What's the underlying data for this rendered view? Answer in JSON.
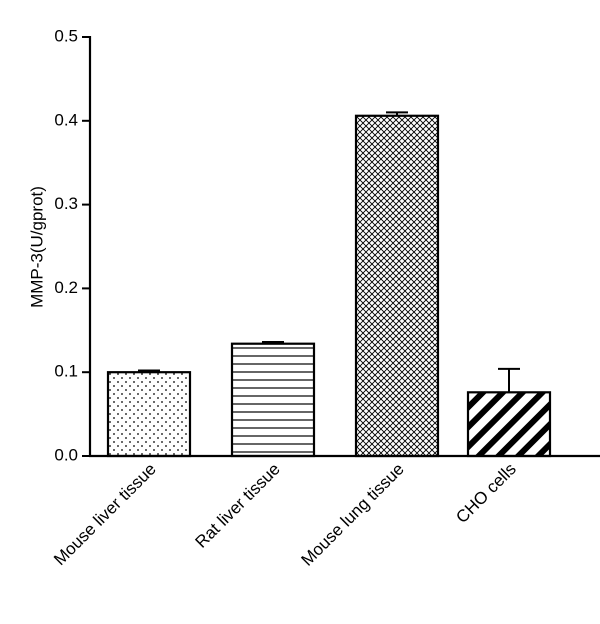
{
  "chart_data": {
    "type": "bar",
    "title": "",
    "xlabel": "",
    "ylabel": "MMP-3(U/gprot)",
    "ylim": [
      0,
      0.5
    ],
    "yticks": [
      "0.0",
      "0.1",
      "0.2",
      "0.3",
      "0.4",
      "0.5"
    ],
    "categories": [
      "Mouse liver tissue",
      "Rat liver tissue",
      "Mouse lung tissue",
      "CHO cells"
    ],
    "values": [
      0.1,
      0.134,
      0.406,
      0.076
    ],
    "errors": [
      0.002,
      0.002,
      0.004,
      0.028
    ],
    "patterns": [
      "dots",
      "horizontal-lines",
      "crosshatch",
      "wide-diagonal-stripes"
    ],
    "grid": false,
    "legend": "none",
    "colors": {
      "bar_stroke": "#000000",
      "pattern": "#000000",
      "background": "#ffffff"
    }
  }
}
